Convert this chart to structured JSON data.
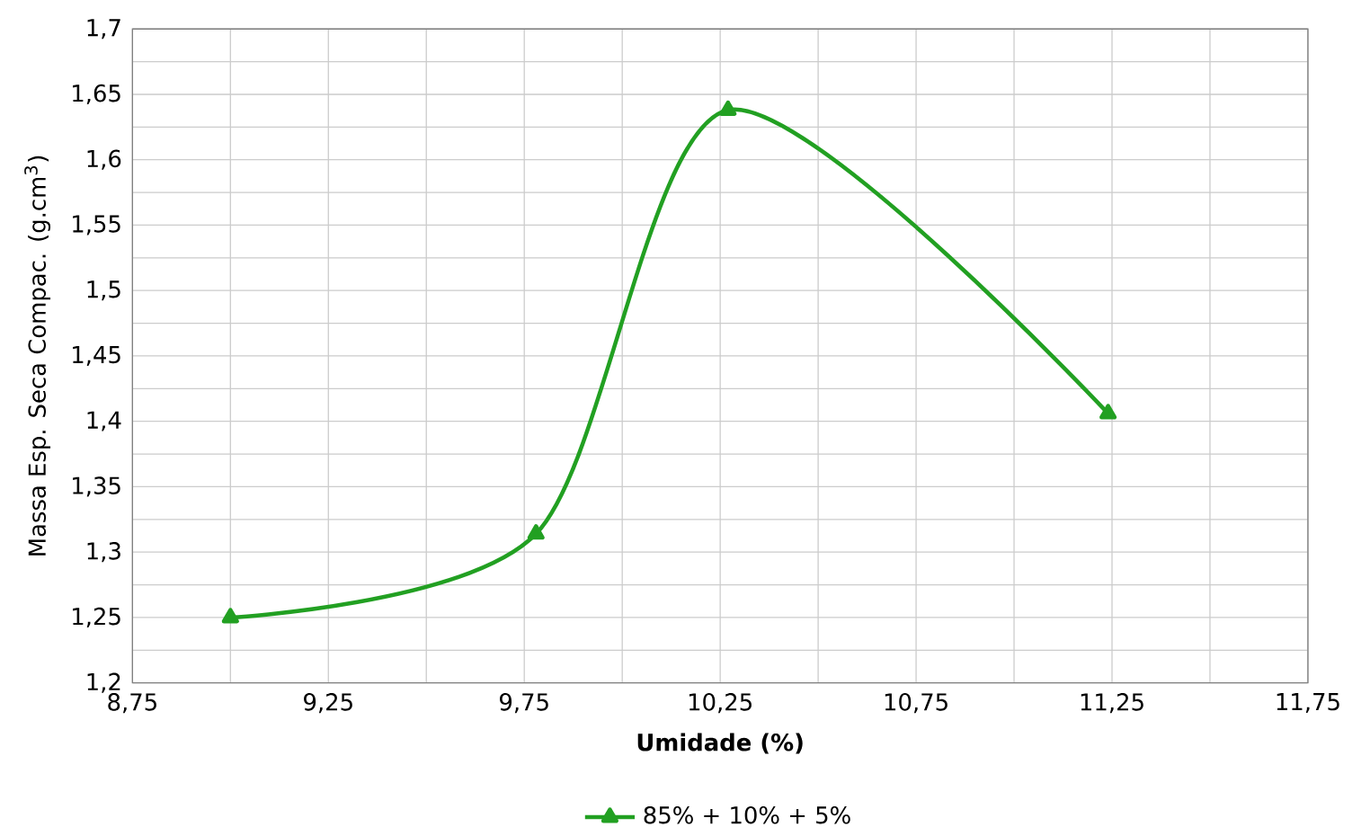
{
  "chart_data": {
    "type": "line",
    "xlabel": "Umidade (%)",
    "ylabel": "Massa Esp. Seca Compac. (g.cm$^{3}$)",
    "xlim": [
      8.75,
      11.75
    ],
    "xticks": [
      {
        "value": 8.75,
        "label": "8,75"
      },
      {
        "value": 9.25,
        "label": "9,25"
      },
      {
        "value": 9.75,
        "label": "9,75"
      },
      {
        "value": 10.25,
        "label": "10,25"
      },
      {
        "value": 10.75,
        "label": "10,75"
      },
      {
        "value": 11.25,
        "label": "11,25"
      },
      {
        "value": 11.75,
        "label": "11,75"
      }
    ],
    "ylim": [
      1.2,
      1.7
    ],
    "yticks": [
      {
        "value": 1.2,
        "label": "1,2"
      },
      {
        "value": 1.25,
        "label": "1,25"
      },
      {
        "value": 1.3,
        "label": "1,3"
      },
      {
        "value": 1.35,
        "label": "1,35"
      },
      {
        "value": 1.4,
        "label": "1,4"
      },
      {
        "value": 1.45,
        "label": "1,45"
      },
      {
        "value": 1.5,
        "label": "1,5"
      },
      {
        "value": 1.55,
        "label": "1,55"
      },
      {
        "value": 1.6,
        "label": "1,6"
      },
      {
        "value": 1.65,
        "label": "1,65"
      },
      {
        "value": 1.7,
        "label": "1,7"
      }
    ],
    "grid": true,
    "legend": "bottom",
    "marker": "triangle",
    "line_style": "solid",
    "series": [
      {
        "name": "85% + 10% + 5%",
        "color": "#22a022",
        "x": [
          9.0,
          9.78,
          10.27,
          11.24
        ],
        "values": [
          1.25,
          1.314,
          1.638,
          1.406
        ]
      }
    ]
  }
}
